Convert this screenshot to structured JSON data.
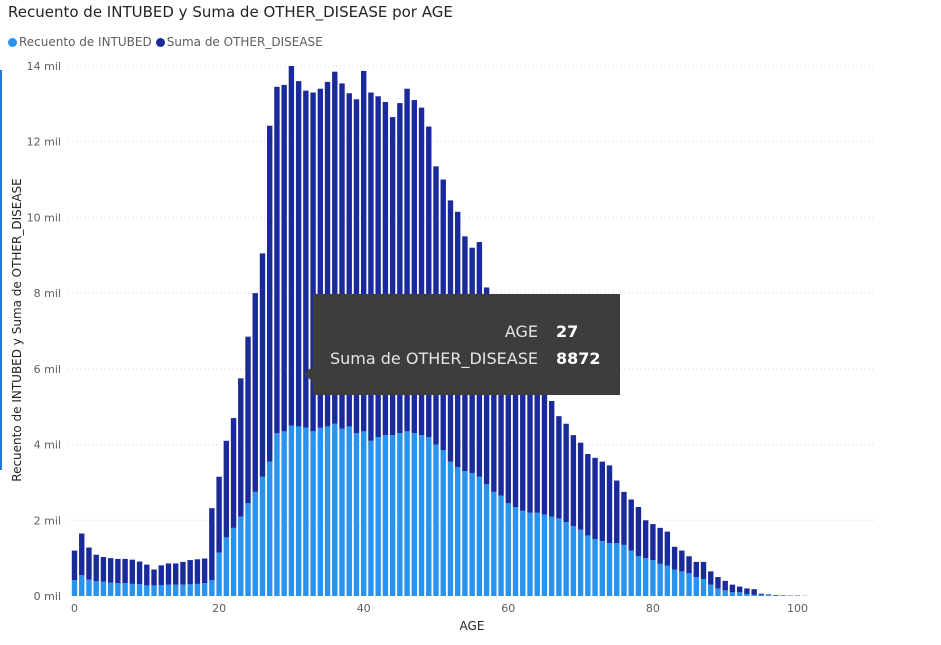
{
  "colors": {
    "intubed": "#2a93ee",
    "other_disease": "#1a2a9a",
    "grid": "#d8d8d8"
  },
  "chart_data": {
    "type": "bar",
    "stacked": true,
    "title": "Recuento de INTUBED y Suma de OTHER_DISEASE por AGE",
    "xlabel": "AGE",
    "ylabel": "Recuento de INTUBED y Suma de OTHER_DISEASE",
    "xlim": [
      0,
      110
    ],
    "ylim": [
      0,
      14000
    ],
    "x_ticks": [
      0,
      20,
      40,
      60,
      80,
      100
    ],
    "y_ticks": [
      {
        "value": 0,
        "label": "0 mil"
      },
      {
        "value": 2000,
        "label": "2 mil"
      },
      {
        "value": 4000,
        "label": "4 mil"
      },
      {
        "value": 6000,
        "label": "6 mil"
      },
      {
        "value": 8000,
        "label": "8 mil"
      },
      {
        "value": 10000,
        "label": "10 mil"
      },
      {
        "value": 12000,
        "label": "12 mil"
      },
      {
        "value": 14000,
        "label": "14 mil"
      }
    ],
    "grid": true,
    "legend_position": "top-left",
    "x": [
      0,
      1,
      2,
      3,
      4,
      5,
      6,
      7,
      8,
      9,
      10,
      11,
      12,
      13,
      14,
      15,
      16,
      17,
      18,
      19,
      20,
      21,
      22,
      23,
      24,
      25,
      26,
      27,
      28,
      29,
      30,
      31,
      32,
      33,
      34,
      35,
      36,
      37,
      38,
      39,
      40,
      41,
      42,
      43,
      44,
      45,
      46,
      47,
      48,
      49,
      50,
      51,
      52,
      53,
      54,
      55,
      56,
      57,
      58,
      59,
      60,
      61,
      62,
      63,
      64,
      65,
      66,
      67,
      68,
      69,
      70,
      71,
      72,
      73,
      74,
      75,
      76,
      77,
      78,
      79,
      80,
      81,
      82,
      83,
      84,
      85,
      86,
      87,
      88,
      89,
      90,
      91,
      92,
      93,
      94,
      95,
      96,
      97,
      98,
      99,
      100,
      101,
      102,
      103,
      104,
      105,
      106,
      107,
      108,
      109,
      110
    ],
    "series": [
      {
        "name": "Recuento de INTUBED",
        "values": [
          420,
          550,
          430,
          390,
          380,
          350,
          340,
          340,
          320,
          310,
          280,
          280,
          290,
          300,
          300,
          300,
          310,
          320,
          340,
          420,
          1150,
          1550,
          1800,
          2100,
          2450,
          2750,
          3150,
          3550,
          4300,
          4350,
          4500,
          4480,
          4450,
          4350,
          4450,
          4480,
          4550,
          4420,
          4480,
          4300,
          4350,
          4100,
          4200,
          4250,
          4250,
          4300,
          4350,
          4300,
          4250,
          4200,
          4000,
          3850,
          3550,
          3400,
          3300,
          3250,
          3150,
          2950,
          2750,
          2650,
          2450,
          2350,
          2250,
          2200,
          2200,
          2150,
          2100,
          2050,
          1950,
          1850,
          1750,
          1600,
          1500,
          1450,
          1400,
          1400,
          1350,
          1200,
          1050,
          1000,
          950,
          850,
          800,
          700,
          650,
          600,
          500,
          450,
          300,
          200,
          150,
          100,
          100,
          50,
          30,
          30,
          20,
          10,
          10,
          0,
          0,
          0,
          0,
          0,
          0,
          0,
          0,
          0,
          0,
          0,
          0
        ],
        "color": "#2a93ee"
      },
      {
        "name": "Suma de OTHER_DISEASE",
        "values": [
          780,
          1100,
          850,
          700,
          650,
          650,
          640,
          640,
          640,
          600,
          550,
          420,
          520,
          560,
          560,
          600,
          640,
          650,
          650,
          1900,
          2000,
          2550,
          2900,
          3650,
          4400,
          5250,
          5900,
          8872,
          9150,
          9150,
          9500,
          9120,
          8900,
          8950,
          8950,
          9100,
          9300,
          9120,
          8800,
          8820,
          9520,
          9200,
          9000,
          8800,
          8400,
          8720,
          9050,
          8800,
          8650,
          8200,
          7350,
          7150,
          6900,
          6750,
          6200,
          5950,
          6200,
          5200,
          5100,
          4900,
          4300,
          4100,
          3750,
          3450,
          3350,
          3250,
          3050,
          2700,
          2600,
          2400,
          2300,
          2150,
          2150,
          2100,
          2050,
          1650,
          1400,
          1350,
          1300,
          1000,
          950,
          950,
          900,
          600,
          550,
          450,
          400,
          450,
          350,
          300,
          250,
          200,
          150,
          150,
          150,
          30,
          20,
          15,
          10,
          10,
          10,
          5,
          0,
          0,
          0,
          0,
          0,
          0,
          0,
          0,
          0
        ],
        "color": "#1a2a9a"
      }
    ]
  },
  "tooltip": {
    "rows": [
      {
        "key": "AGE",
        "value": "27"
      },
      {
        "key": "Suma de OTHER_DISEASE",
        "value": "8872"
      }
    ]
  }
}
